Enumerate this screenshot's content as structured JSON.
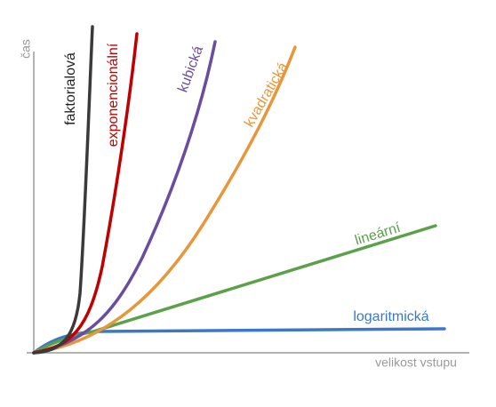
{
  "axes": {
    "y_label": "čas",
    "x_label": "velikost vstupu"
  },
  "curves": [
    {
      "label": "faktorialová"
    },
    {
      "label": "exponencionální"
    },
    {
      "label": "kubická"
    },
    {
      "label": "kvadratická"
    },
    {
      "label": "lineární"
    },
    {
      "label": "logaritmická"
    }
  ]
}
